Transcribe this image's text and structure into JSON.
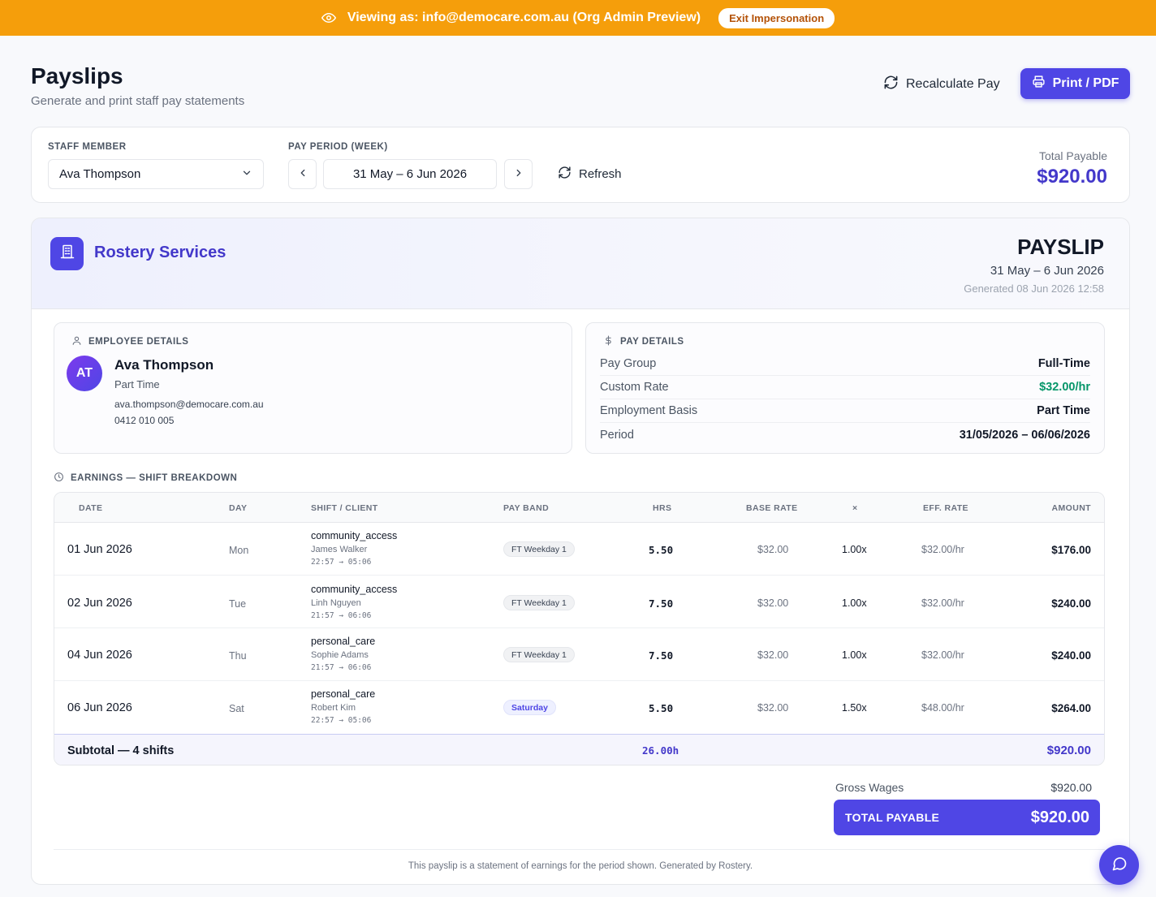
{
  "banner": {
    "text": "Viewing as: info@democare.com.au (Org Admin Preview)",
    "exit_label": "Exit Impersonation",
    "color": "#f59e0b"
  },
  "header": {
    "title": "Payslips",
    "subtitle": "Generate and print staff pay statements",
    "recalculate_label": "Recalculate Pay",
    "print_label": "Print / PDF"
  },
  "filters": {
    "staff_label": "STAFF MEMBER",
    "staff_value": "Ava Thompson",
    "period_label": "PAY PERIOD (WEEK)",
    "period_value": "31 May – 6 Jun 2026",
    "refresh_label": "Refresh",
    "total_label": "Total Payable",
    "total_value": "$920.00"
  },
  "payslip": {
    "company": "Rostery Services",
    "title": "PAYSLIP",
    "period": "31 May – 6 Jun 2026",
    "generated": "Generated 08 Jun 2026 12:58"
  },
  "employee": {
    "heading": "EMPLOYEE DETAILS",
    "initials": "AT",
    "name": "Ava Thompson",
    "type": "Part Time",
    "email": "ava.thompson@democare.com.au",
    "phone": "0412 010 005"
  },
  "pay_details": {
    "heading": "PAY DETAILS",
    "rows": [
      {
        "key": "Pay Group",
        "value": "Full-Time"
      },
      {
        "key": "Custom Rate",
        "value": "$32.00/hr"
      },
      {
        "key": "Employment Basis",
        "value": "Part Time"
      },
      {
        "key": "Period",
        "value": "31/05/2026 – 06/06/2026"
      }
    ]
  },
  "earnings": {
    "heading": "EARNINGS — SHIFT BREAKDOWN",
    "columns": {
      "date": "DATE",
      "day": "DAY",
      "shift": "SHIFT / CLIENT",
      "band": "PAY BAND",
      "hrs": "HRS",
      "base": "BASE RATE",
      "mult": "×",
      "eff": "EFF. RATE",
      "amount": "AMOUNT"
    },
    "rows": [
      {
        "date": "01 Jun 2026",
        "day": "Mon",
        "shift": "community_access",
        "client": "James Walker",
        "time": "22:57 → 05:06",
        "band": "FT Weekday 1",
        "hrs": "5.50",
        "base": "$32.00",
        "mult": "1.00x",
        "eff": "$32.00/hr",
        "amount": "$176.00"
      },
      {
        "date": "02 Jun 2026",
        "day": "Tue",
        "shift": "community_access",
        "client": "Linh Nguyen",
        "time": "21:57 → 06:06",
        "band": "FT Weekday 1",
        "hrs": "7.50",
        "base": "$32.00",
        "mult": "1.00x",
        "eff": "$32.00/hr",
        "amount": "$240.00"
      },
      {
        "date": "04 Jun 2026",
        "day": "Thu",
        "shift": "personal_care",
        "client": "Sophie Adams",
        "time": "21:57 → 06:06",
        "band": "FT Weekday 1",
        "hrs": "7.50",
        "base": "$32.00",
        "mult": "1.00x",
        "eff": "$32.00/hr",
        "amount": "$240.00"
      },
      {
        "date": "06 Jun 2026",
        "day": "Sat",
        "shift": "personal_care",
        "client": "Robert Kim",
        "time": "22:57 → 05:06",
        "band": "Saturday",
        "hrs": "5.50",
        "base": "$32.00",
        "mult": "1.50x",
        "eff": "$48.00/hr",
        "amount": "$264.00"
      }
    ],
    "subtotal_label": "Subtotal — 4 shifts",
    "subtotal_hrs": "26.00h",
    "subtotal_amount": "$920.00"
  },
  "totals": {
    "gross_label": "Gross Wages",
    "gross_value": "$920.00",
    "total_label": "TOTAL PAYABLE",
    "total_value": "$920.00"
  },
  "footer": {
    "note": "This payslip is a statement of earnings for the period shown. Generated by Rostery."
  },
  "colors": {
    "accent": "#4f46e5",
    "accent_text": "#4338ca",
    "positive": "#059669"
  }
}
